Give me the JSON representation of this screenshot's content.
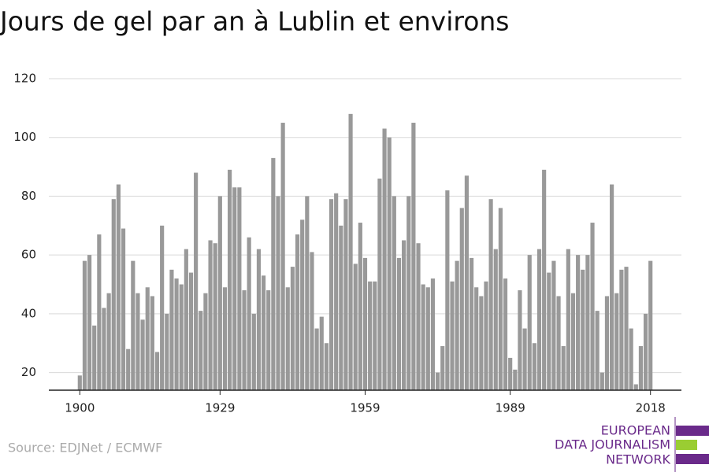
{
  "chart_data": {
    "type": "bar",
    "title": "Jours de gel par an à Lublin et environs",
    "source": "Source: EDJNet / ECMWF",
    "logo": [
      "EUROPEAN",
      "DATA JOURNALISM",
      "NETWORK"
    ],
    "color": "#999999",
    "x": [
      1900,
      1901,
      1902,
      1903,
      1904,
      1905,
      1906,
      1907,
      1908,
      1909,
      1910,
      1911,
      1912,
      1913,
      1914,
      1915,
      1916,
      1917,
      1918,
      1919,
      1920,
      1921,
      1922,
      1923,
      1924,
      1925,
      1926,
      1927,
      1928,
      1929,
      1930,
      1931,
      1932,
      1933,
      1934,
      1935,
      1936,
      1937,
      1938,
      1939,
      1940,
      1941,
      1942,
      1943,
      1944,
      1945,
      1946,
      1947,
      1948,
      1949,
      1950,
      1951,
      1952,
      1953,
      1954,
      1955,
      1956,
      1957,
      1958,
      1959,
      1960,
      1961,
      1962,
      1963,
      1964,
      1965,
      1966,
      1967,
      1968,
      1969,
      1970,
      1971,
      1972,
      1973,
      1974,
      1975,
      1976,
      1977,
      1978,
      1979,
      1980,
      1981,
      1982,
      1983,
      1984,
      1985,
      1986,
      1987,
      1988,
      1989,
      1990,
      1991,
      1992,
      1993,
      1994,
      1995,
      1996,
      1997,
      1998,
      1999,
      2000,
      2001,
      2002,
      2003,
      2004,
      2005,
      2006,
      2007,
      2008,
      2009,
      2010,
      2011,
      2012,
      2013,
      2014,
      2015,
      2016,
      2017,
      2018
    ],
    "values": [
      19,
      58,
      60,
      36,
      67,
      42,
      47,
      79,
      84,
      69,
      28,
      58,
      47,
      38,
      49,
      46,
      27,
      70,
      40,
      55,
      52,
      50,
      62,
      54,
      88,
      41,
      47,
      65,
      64,
      80,
      49,
      89,
      83,
      83,
      48,
      66,
      40,
      62,
      53,
      48,
      93,
      80,
      105,
      49,
      56,
      67,
      72,
      80,
      61,
      35,
      39,
      30,
      79,
      81,
      70,
      79,
      108,
      57,
      71,
      59,
      51,
      51,
      86,
      103,
      100,
      80,
      59,
      65,
      80,
      105,
      64,
      50,
      49,
      52,
      20,
      29,
      82,
      51,
      58,
      76,
      87,
      59,
      49,
      46,
      51,
      79,
      62,
      76,
      52,
      25,
      21,
      48,
      35,
      60,
      30,
      62,
      89,
      54,
      58,
      46,
      29,
      62,
      47,
      60,
      55,
      60,
      71,
      41,
      20,
      46,
      84,
      47,
      55,
      56,
      35,
      16,
      29,
      40,
      58
    ],
    "xlim": [
      1893.6,
      2024.4
    ],
    "xticks": [
      1900,
      1929,
      1959,
      1989,
      2018
    ],
    "ylim": [
      14,
      120
    ],
    "yticks": [
      20,
      40,
      60,
      80,
      100,
      120
    ],
    "grid": true
  }
}
